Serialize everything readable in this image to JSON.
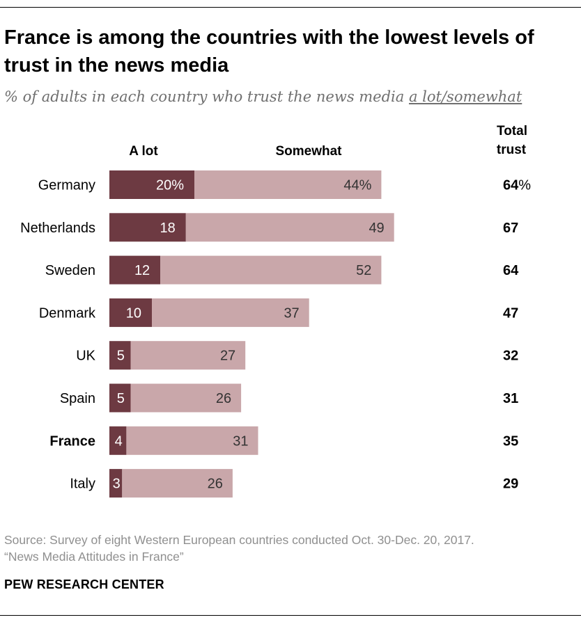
{
  "title": "France is among the countries with the lowest levels of trust in the news media",
  "subtitle": {
    "prefix": "% of adults in each country who trust the news media ",
    "emphasis": "a lot/somewhat"
  },
  "source": {
    "line1": "Source: Survey of eight Western European countries conducted Oct. 30-Dec. 20, 2017.",
    "line2": "“News Media Attitudes in France”"
  },
  "brand": "PEW RESEARCH CENTER",
  "chart_data": {
    "type": "bar",
    "orientation": "horizontal",
    "stacked": true,
    "categories": [
      "Germany",
      "Netherlands",
      "Sweden",
      "Denmark",
      "UK",
      "Spain",
      "France",
      "Italy"
    ],
    "highlight_category": "France",
    "series": [
      {
        "name": "A lot",
        "color": "#6d3a42",
        "values": [
          20,
          18,
          12,
          10,
          5,
          5,
          4,
          3
        ]
      },
      {
        "name": "Somewhat",
        "color": "#c9a7aa",
        "values": [
          44,
          49,
          52,
          37,
          27,
          26,
          31,
          26
        ]
      }
    ],
    "total_header": "Total trust",
    "totals": [
      64,
      67,
      64,
      47,
      32,
      31,
      35,
      29
    ],
    "first_row_suffix": "%",
    "xlim": [
      0,
      100
    ]
  }
}
